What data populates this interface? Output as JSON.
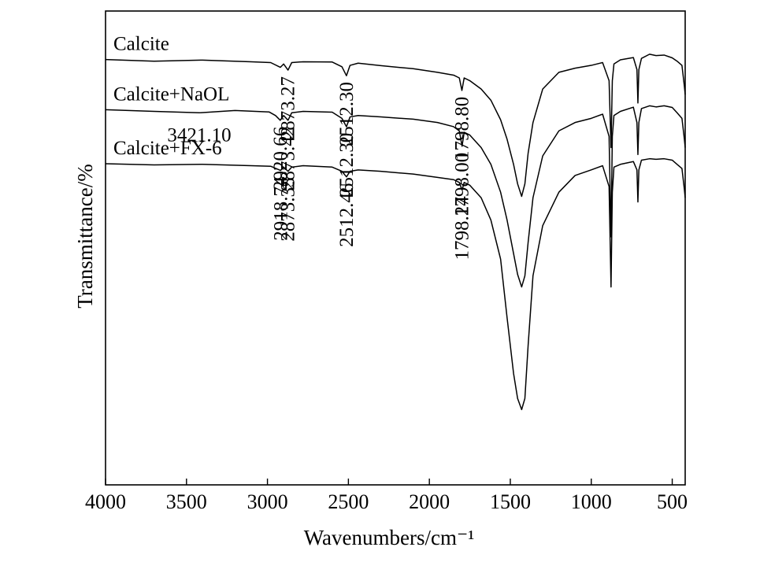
{
  "chart_data": {
    "type": "line",
    "xlabel": "Wavenumbers/cm⁻¹",
    "ylabel": "Transmittance/%",
    "xlim": [
      4000,
      420
    ],
    "x_reversed": true,
    "xticks": [
      4000,
      3500,
      3000,
      2500,
      2000,
      1500,
      1000,
      500
    ],
    "yticks_shown": false,
    "series": [
      {
        "name": "Calcite",
        "x": [
          4000,
          3700,
          3400,
          3100,
          2980,
          2920,
          2900,
          2873,
          2850,
          2780,
          2600,
          2540,
          2512,
          2490,
          2440,
          2300,
          2100,
          1950,
          1850,
          1815,
          1799,
          1785,
          1750,
          1680,
          1620,
          1560,
          1520,
          1480,
          1455,
          1430,
          1410,
          1390,
          1360,
          1300,
          1200,
          1100,
          1000,
          930,
          890,
          878,
          870,
          860,
          820,
          740,
          718,
          712,
          706,
          690,
          640,
          600,
          550,
          500,
          470,
          440,
          425,
          420
        ],
        "y": [
          77.6,
          77.0,
          77.4,
          76.8,
          76.5,
          74.8,
          76.0,
          73.8,
          76.5,
          76.8,
          76.7,
          75.0,
          71.8,
          75.5,
          76.3,
          75.4,
          74.3,
          73.0,
          72.0,
          71.0,
          66.5,
          71.0,
          70.0,
          67.0,
          63.0,
          56.0,
          49.0,
          40.0,
          33.0,
          28.5,
          33.0,
          44.0,
          55.0,
          67.0,
          73.0,
          74.5,
          75.5,
          76.5,
          70.0,
          46.0,
          70.0,
          76.0,
          77.5,
          78.3,
          74.0,
          62.0,
          74.0,
          78.0,
          79.5,
          79.0,
          79.2,
          78.2,
          77.0,
          75.5,
          68.0,
          65.0
        ]
      },
      {
        "name": "Calcite+NaOL",
        "x": [
          4000,
          3700,
          3421,
          3200,
          2990,
          2950,
          2921,
          2900,
          2873,
          2850,
          2780,
          2600,
          2540,
          2512,
          2490,
          2440,
          2300,
          2100,
          1950,
          1850,
          1815,
          1798,
          1785,
          1750,
          1680,
          1620,
          1560,
          1520,
          1480,
          1455,
          1430,
          1410,
          1390,
          1360,
          1300,
          1200,
          1100,
          1000,
          930,
          890,
          878,
          870,
          860,
          820,
          740,
          718,
          712,
          706,
          690,
          640,
          600,
          550,
          500,
          470,
          440,
          425,
          420
        ],
        "y": [
          59.6,
          59.0,
          58.5,
          59.3,
          58.8,
          57.5,
          55.8,
          57.5,
          55.8,
          58.5,
          59.0,
          58.7,
          56.5,
          53.5,
          57.0,
          57.5,
          57.0,
          56.2,
          55.0,
          53.5,
          52.0,
          46.5,
          51.5,
          50.5,
          46.0,
          40.0,
          30.0,
          20.0,
          8.0,
          0.5,
          -4.0,
          0.0,
          12.0,
          28.0,
          43.0,
          52.0,
          55.0,
          56.5,
          58.0,
          50.0,
          14.0,
          50.0,
          57.5,
          59.0,
          60.5,
          55.0,
          43.5,
          55.0,
          60.0,
          61.0,
          60.6,
          61.0,
          60.4,
          58.5,
          56.5,
          49.0,
          46.0
        ]
      },
      {
        "name": "Calcite+FX-6",
        "x": [
          4000,
          3700,
          3400,
          3100,
          2980,
          2919,
          2900,
          2873,
          2850,
          2780,
          2600,
          2540,
          2512,
          2490,
          2440,
          2300,
          2100,
          1950,
          1850,
          1815,
          1798,
          1785,
          1750,
          1680,
          1620,
          1560,
          1520,
          1480,
          1455,
          1430,
          1410,
          1390,
          1360,
          1300,
          1200,
          1100,
          1000,
          930,
          890,
          878,
          870,
          860,
          820,
          740,
          718,
          712,
          706,
          690,
          640,
          600,
          550,
          500,
          470,
          440,
          425,
          420
        ],
        "y": [
          40.2,
          39.8,
          40.0,
          39.5,
          39.3,
          37.8,
          39.0,
          37.5,
          39.0,
          39.5,
          39.0,
          37.5,
          35.5,
          37.5,
          38.0,
          37.5,
          36.5,
          35.3,
          34.5,
          33.5,
          30.8,
          33.5,
          32.5,
          28.0,
          20.0,
          6.0,
          -15.0,
          -35.0,
          -44.0,
          -48.0,
          -44.0,
          -25.0,
          0.0,
          18.0,
          30.0,
          36.0,
          38.0,
          39.5,
          32.0,
          -4.0,
          30.0,
          39.0,
          40.0,
          41.0,
          38.0,
          26.5,
          38.0,
          41.5,
          42.0,
          41.8,
          42.0,
          41.5,
          40.0,
          38.5,
          31.0,
          28.0
        ]
      }
    ],
    "peak_labels": [
      {
        "series": "Calcite",
        "x": 2873.27,
        "text": "2873.27"
      },
      {
        "series": "Calcite",
        "x": 2512.3,
        "text": "2512.30"
      },
      {
        "series": "Calcite",
        "x": 1798.8,
        "text": "1798.80"
      },
      {
        "series": "Calcite+NaOL",
        "x": 3421.1,
        "text": "3421.10"
      },
      {
        "series": "Calcite+NaOL",
        "x": 2920.66,
        "text": "2920.66"
      },
      {
        "series": "Calcite+NaOL",
        "x": 2873.42,
        "text": "2873.42"
      },
      {
        "series": "Calcite+NaOL",
        "x": 2512.3,
        "text": "2512.30"
      },
      {
        "series": "Calcite+NaOL",
        "x": 1798.0,
        "text": "1798.00"
      },
      {
        "series": "Calcite+FX-6",
        "x": 2918.74,
        "text": "2918.74"
      },
      {
        "series": "Calcite+FX-6",
        "x": 2873.35,
        "text": "2873.35"
      },
      {
        "series": "Calcite+FX-6",
        "x": 2512.46,
        "text": "2512.46"
      },
      {
        "series": "Calcite+FX-6",
        "x": 1798.24,
        "text": "1798.24"
      }
    ]
  }
}
